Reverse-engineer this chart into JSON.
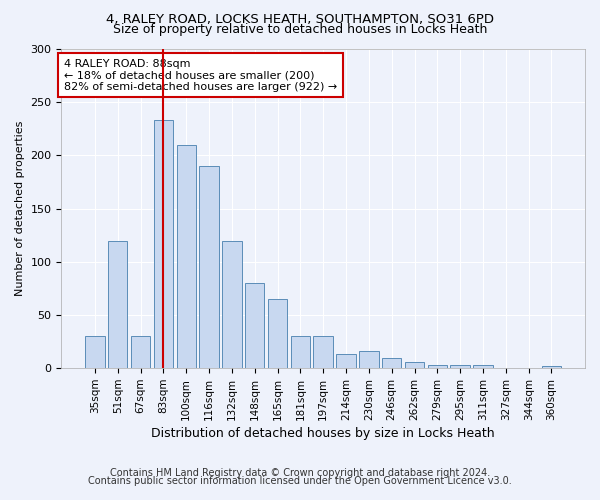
{
  "title1": "4, RALEY ROAD, LOCKS HEATH, SOUTHAMPTON, SO31 6PD",
  "title2": "Size of property relative to detached houses in Locks Heath",
  "xlabel": "Distribution of detached houses by size in Locks Heath",
  "ylabel": "Number of detached properties",
  "categories": [
    "35sqm",
    "51sqm",
    "67sqm",
    "83sqm",
    "100sqm",
    "116sqm",
    "132sqm",
    "148sqm",
    "165sqm",
    "181sqm",
    "197sqm",
    "214sqm",
    "230sqm",
    "246sqm",
    "262sqm",
    "279sqm",
    "295sqm",
    "311sqm",
    "327sqm",
    "344sqm",
    "360sqm"
  ],
  "values": [
    30,
    120,
    30,
    233,
    210,
    190,
    120,
    80,
    65,
    30,
    30,
    13,
    16,
    10,
    6,
    3,
    3,
    3,
    0,
    0,
    2
  ],
  "bar_color": "#c8d8f0",
  "bar_edge_color": "#5b8db8",
  "vline_x": 3,
  "vline_color": "#cc0000",
  "annotation_text": "4 RALEY ROAD: 88sqm\n← 18% of detached houses are smaller (200)\n82% of semi-detached houses are larger (922) →",
  "annotation_box_color": "white",
  "annotation_box_edge": "#cc0000",
  "ylim": [
    0,
    300
  ],
  "yticks": [
    0,
    50,
    100,
    150,
    200,
    250,
    300
  ],
  "footer1": "Contains HM Land Registry data © Crown copyright and database right 2024.",
  "footer2": "Contains public sector information licensed under the Open Government Licence v3.0.",
  "bg_color": "#eef2fb",
  "grid_color": "#ffffff",
  "title1_fontsize": 9.5,
  "title2_fontsize": 9,
  "annotation_fontsize": 8,
  "footer_fontsize": 7,
  "ylabel_fontsize": 8,
  "xlabel_fontsize": 9
}
